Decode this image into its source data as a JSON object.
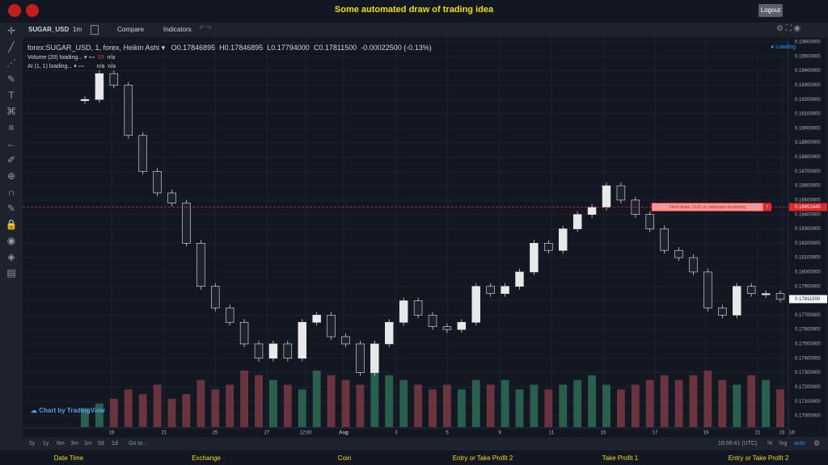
{
  "header": {
    "title": "Some automated draw of trading idea",
    "logout": "Logout"
  },
  "toolbar": {
    "symbol": "SUGAR_USD",
    "interval": "1m",
    "compare": "Compare",
    "indicators": "Indicators"
  },
  "legend": {
    "symbol": "forex:SUGAR_USD, 1, forex, Heikin Ashi",
    "open": "O0.17846895",
    "high": "H0.17846895",
    "low": "L0.17794000",
    "close": "C0.17811500",
    "change": "-0.00022500 (-0.13%)",
    "volume": "Volume (20) loading...",
    "volume_value": "15",
    "volume_na": "n/a",
    "ai": "AI (1, 1) loading...",
    "ai_na1": "n/a",
    "ai_na2": "n/a",
    "loading": "Loading"
  },
  "chart_data": {
    "type": "candlestick",
    "xtick_labels": [
      "19",
      "21",
      "25",
      "27",
      "12:00",
      "Aug",
      "3",
      "5",
      "9",
      "11",
      "15",
      "17",
      "19",
      "21",
      "23",
      "16:"
    ],
    "values": [
      0.192,
      0.1938,
      0.193,
      0.1895,
      0.187,
      0.1855,
      0.1848,
      0.182,
      0.179,
      0.1775,
      0.1765,
      0.175,
      0.174,
      0.175,
      0.174,
      0.1765,
      0.177,
      0.1755,
      0.175,
      0.173,
      0.175,
      0.1765,
      0.178,
      0.177,
      0.1762,
      0.176,
      0.1765,
      0.179,
      0.1785,
      0.179,
      0.18,
      0.182,
      0.1815,
      0.183,
      0.184,
      0.1845,
      0.186,
      0.185,
      0.184,
      0.183,
      0.1815,
      0.181,
      0.18,
      0.1775,
      0.177,
      0.179,
      0.1785,
      0.1785,
      0.1781
    ],
    "volume": [
      20,
      25,
      30,
      40,
      35,
      45,
      30,
      35,
      50,
      40,
      45,
      60,
      55,
      50,
      45,
      40,
      60,
      55,
      50,
      45,
      60,
      55,
      50,
      45,
      40,
      45,
      40,
      50,
      45,
      50,
      40,
      45,
      40,
      45,
      50,
      55,
      45,
      40,
      45,
      50,
      55,
      50,
      55,
      60,
      50,
      45,
      55,
      50,
      40
    ],
    "ylim": [
      0.17,
      0.196
    ],
    "yticks": [
      {
        "value": 0.196,
        "label": "0.19600000"
      },
      {
        "value": 0.195,
        "label": "0.19500000"
      },
      {
        "value": 0.194,
        "label": "0.19400000"
      },
      {
        "value": 0.193,
        "label": "0.19300000"
      },
      {
        "value": 0.192,
        "label": "0.19200000"
      },
      {
        "value": 0.191,
        "label": "0.19100000"
      },
      {
        "value": 0.19,
        "label": "0.19000000"
      },
      {
        "value": 0.189,
        "label": "0.18900000"
      },
      {
        "value": 0.188,
        "label": "0.18800000"
      },
      {
        "value": 0.187,
        "label": "0.18700000"
      },
      {
        "value": 0.186,
        "label": "0.18600000"
      },
      {
        "value": 0.185,
        "label": "0.18500000"
      },
      {
        "value": 0.184,
        "label": "0.18400000"
      },
      {
        "value": 0.183,
        "label": "0.18300000"
      },
      {
        "value": 0.182,
        "label": "0.18200000"
      },
      {
        "value": 0.181,
        "label": "0.18100000"
      },
      {
        "value": 0.18,
        "label": "0.18000000"
      },
      {
        "value": 0.179,
        "label": "0.17900000"
      },
      {
        "value": 0.178,
        "label": "0.17800000"
      },
      {
        "value": 0.177,
        "label": "0.17700000"
      },
      {
        "value": 0.176,
        "label": "0.17600000"
      },
      {
        "value": 0.175,
        "label": "0.17500000"
      },
      {
        "value": 0.174,
        "label": "0.17400000"
      },
      {
        "value": 0.173,
        "label": "0.17300000"
      },
      {
        "value": 0.172,
        "label": "0.17200000"
      },
      {
        "value": 0.171,
        "label": "0.17100000"
      },
      {
        "value": 0.17,
        "label": "0.17000000"
      }
    ],
    "grid": true,
    "hline": {
      "value": 0.18451645,
      "label": "0.18451645",
      "annotation": "Dont draw. CUC or sideways incoming",
      "flag": "!"
    },
    "last": {
      "value": 0.178115,
      "label": "0.17811500"
    },
    "colors": {
      "up": "#e8e8e8",
      "down": "#1e222d",
      "vol_up": "#2f6b55",
      "vol_down": "#7a3a44",
      "hline": "#e0282e"
    }
  },
  "bottom": {
    "ranges": [
      "5y",
      "1y",
      "6m",
      "3m",
      "1m",
      "5d",
      "1d"
    ],
    "goto": "Go to...",
    "time": "16:06:41 (UTC)",
    "percent": "%",
    "log": "log",
    "auto": "auto"
  },
  "watermark": "Chart by TradingView",
  "footer": [
    "Date Time",
    "Exchange",
    "Coin",
    "Entry or Take Profit 2",
    "Take Profit 1",
    "Entry or Take Profit 2"
  ]
}
